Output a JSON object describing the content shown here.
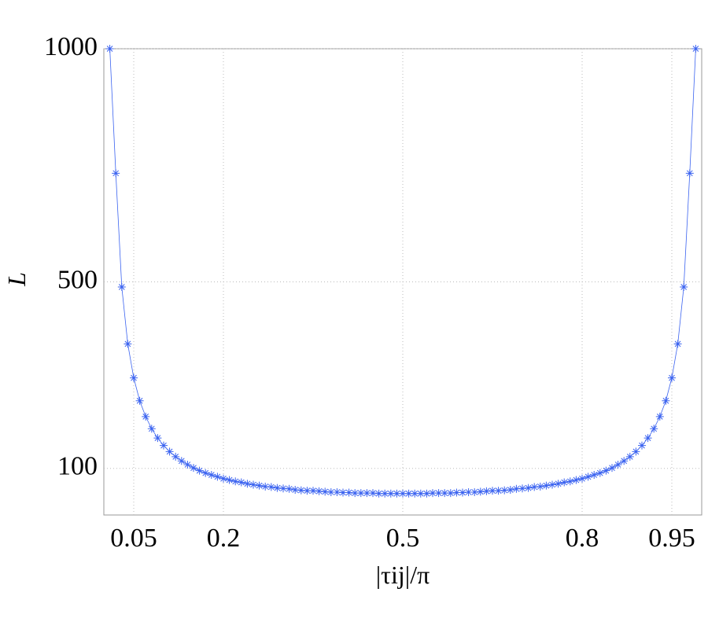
{
  "chart_data": {
    "type": "line",
    "x_label": "|τij|/π",
    "y_label": "L",
    "x": [
      0.01,
      0.02,
      0.03,
      0.04,
      0.05,
      0.06,
      0.07,
      0.08,
      0.09,
      0.1,
      0.11,
      0.12,
      0.13,
      0.14,
      0.15,
      0.16,
      0.17,
      0.18,
      0.19,
      0.2,
      0.21,
      0.22,
      0.23,
      0.24,
      0.25,
      0.26,
      0.27,
      0.28,
      0.29,
      0.3,
      0.31,
      0.32,
      0.33,
      0.34,
      0.35,
      0.36,
      0.37,
      0.38,
      0.39,
      0.4,
      0.41,
      0.42,
      0.43,
      0.44,
      0.45,
      0.46,
      0.47,
      0.48,
      0.49,
      0.5,
      0.51,
      0.52,
      0.53,
      0.54,
      0.55,
      0.56,
      0.57,
      0.58,
      0.59,
      0.6,
      0.61,
      0.62,
      0.63,
      0.64,
      0.65,
      0.66,
      0.67,
      0.68,
      0.69,
      0.7,
      0.71,
      0.72,
      0.73,
      0.74,
      0.75,
      0.76,
      0.77,
      0.78,
      0.79,
      0.8,
      0.81,
      0.82,
      0.83,
      0.84,
      0.85,
      0.86,
      0.87,
      0.88,
      0.89,
      0.9,
      0.91,
      0.92,
      0.93,
      0.94,
      0.95,
      0.96,
      0.97,
      0.98,
      0.99
    ],
    "values": [
      1000,
      733,
      489,
      367,
      294,
      245,
      211,
      185,
      165,
      149,
      136,
      125,
      116,
      108,
      101,
      95,
      90,
      86,
      82,
      78,
      75,
      72,
      70,
      67,
      65,
      63,
      61,
      60,
      58,
      57,
      56,
      54,
      53,
      52,
      52,
      51,
      50,
      49,
      49,
      48,
      48,
      47,
      47,
      47,
      47,
      46,
      46,
      46,
      46,
      46,
      46,
      46,
      46,
      46,
      47,
      47,
      47,
      47,
      48,
      48,
      49,
      49,
      50,
      51,
      52,
      52,
      53,
      54,
      56,
      57,
      58,
      60,
      61,
      63,
      65,
      67,
      70,
      72,
      75,
      78,
      82,
      86,
      90,
      95,
      101,
      108,
      116,
      125,
      136,
      149,
      165,
      185,
      211,
      245,
      294,
      367,
      489,
      733,
      1000
    ],
    "color": "#3b63f0",
    "xlim": [
      0,
      1
    ],
    "ylim": [
      0,
      1000
    ],
    "xticks": [
      0.05,
      0.2,
      0.5,
      0.8,
      0.95
    ],
    "yticks": [
      100,
      500,
      1000
    ],
    "grid": true
  }
}
